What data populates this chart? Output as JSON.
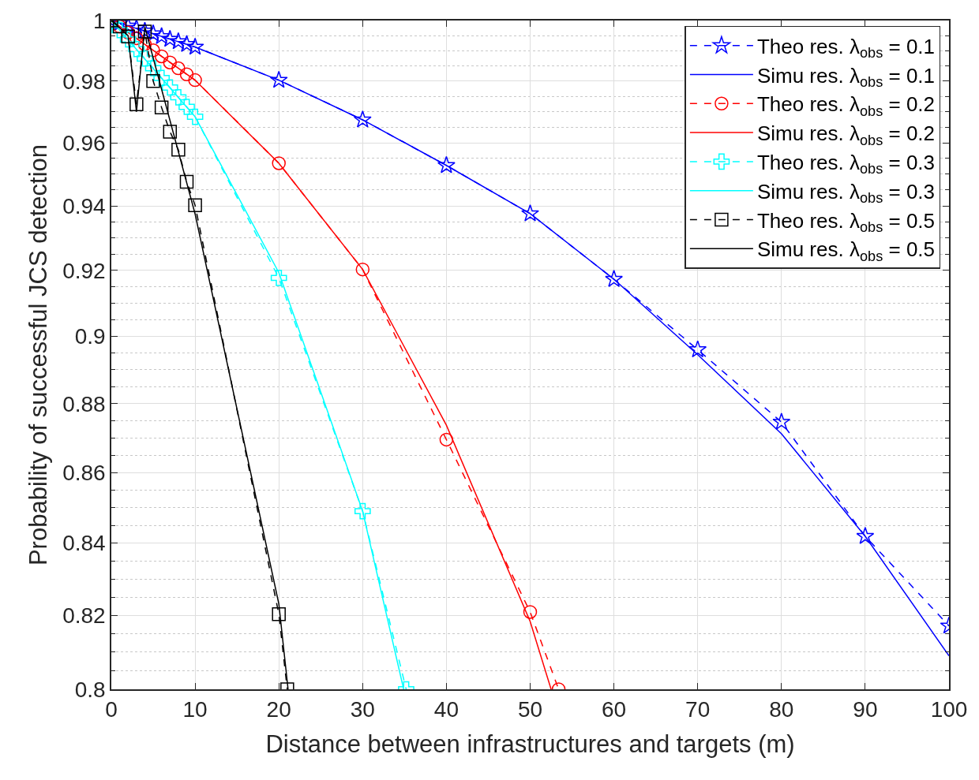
{
  "chart_data": {
    "type": "line",
    "xlabel": "Distance between infrastructures and targets (m)",
    "ylabel": "Probability of successful JCS detection",
    "xlim": [
      0,
      100
    ],
    "xticks": [
      0,
      10,
      20,
      30,
      40,
      50,
      60,
      70,
      80,
      90,
      100
    ],
    "ylim": [
      0.8,
      1
    ],
    "yticks": [
      0.8,
      0.82,
      0.84,
      0.86,
      0.88,
      0.9,
      0.92,
      0.94,
      0.96,
      0.98,
      1
    ],
    "log": "y",
    "grid": true,
    "legend": "top right",
    "series": [
      {
        "name": "Theo res. λ$_{obs}$ = 0.1",
        "color": "#0000ff",
        "line_style": "dashed",
        "marker": "star",
        "x": [
          0,
          1,
          2,
          3,
          4,
          5,
          6,
          7,
          8,
          9,
          10,
          20,
          30,
          40,
          50,
          60,
          70,
          80,
          90,
          100
        ],
        "values": [
          1,
          0.9991,
          0.9982,
          0.9974,
          0.9965,
          0.9956,
          0.9947,
          0.9938,
          0.993,
          0.9921,
          0.9912,
          0.9803,
          0.9674,
          0.9528,
          0.9376,
          0.9173,
          0.896,
          0.8746,
          0.8419,
          0.8171
        ]
      },
      {
        "name": "Simu res. λ$_{obs}$ = 0.1",
        "color": "#0000ff",
        "line_style": "solid",
        "marker": "none",
        "x": [
          0,
          10,
          20,
          30,
          40,
          50,
          60,
          70,
          80,
          90,
          100
        ],
        "values": [
          1,
          0.9912,
          0.9803,
          0.9674,
          0.9528,
          0.9376,
          0.9173,
          0.8945,
          0.8712,
          0.8419,
          0.809
        ]
      },
      {
        "name": "Theo res. λ$_{obs}$ = 0.2",
        "color": "#ff0000",
        "line_style": "dashed",
        "marker": "circle",
        "x": [
          0,
          1,
          2,
          3,
          4,
          5,
          6,
          7,
          8,
          9,
          10,
          20,
          30,
          40,
          50,
          53.4
        ],
        "values": [
          1,
          0.998,
          0.996,
          0.9941,
          0.9921,
          0.9901,
          0.9881,
          0.9861,
          0.9842,
          0.9822,
          0.9803,
          0.9535,
          0.9203,
          0.8695,
          0.8209,
          0.8
        ]
      },
      {
        "name": "Simu res. λ$_{obs}$ = 0.2",
        "color": "#ff0000",
        "line_style": "solid",
        "marker": "none",
        "x": [
          0,
          10,
          20,
          30,
          40,
          50,
          52.5
        ],
        "values": [
          1,
          0.9803,
          0.9535,
          0.9203,
          0.8737,
          0.8183,
          0.8
        ]
      },
      {
        "name": "Theo res. λ$_{obs}$ = 0.3",
        "color": "#00ffff",
        "line_style": "dashed",
        "marker": "cross",
        "x": [
          0,
          1,
          2,
          3,
          4,
          5,
          6,
          7,
          8,
          9,
          10,
          20,
          30,
          35.2
        ],
        "values": [
          1,
          0.9968,
          0.9937,
          0.9905,
          0.9874,
          0.9842,
          0.981,
          0.9779,
          0.9747,
          0.9716,
          0.9684,
          0.9177,
          0.849,
          0.8
        ]
      },
      {
        "name": "Simu res. λ$_{obs}$ = 0.3",
        "color": "#00ffff",
        "line_style": "solid",
        "marker": "none",
        "x": [
          0,
          10,
          20,
          30,
          34.9
        ],
        "values": [
          1,
          0.9684,
          0.9193,
          0.849,
          0.8
        ]
      },
      {
        "name": "Theo res. λ$_{obs}$ = 0.5",
        "color": "#000000",
        "line_style": "dashed",
        "marker": "square",
        "x": [
          0,
          1,
          2,
          3,
          4,
          5,
          6,
          7,
          8,
          9,
          10,
          20,
          21
        ],
        "values": [
          1,
          0.998,
          0.9947,
          0.9724,
          0.9963,
          0.98,
          0.9714,
          0.9636,
          0.9578,
          0.9476,
          0.9402,
          0.8203,
          0.8
        ]
      },
      {
        "name": "Simu res. λ$_{obs}$ = 0.5",
        "color": "#000000",
        "line_style": "solid",
        "marker": "none",
        "x": [
          0,
          2,
          3,
          4,
          10,
          20,
          21.1
        ],
        "values": [
          1,
          0.995,
          0.97,
          0.9979,
          0.9375,
          0.8231,
          0.8
        ]
      }
    ]
  }
}
